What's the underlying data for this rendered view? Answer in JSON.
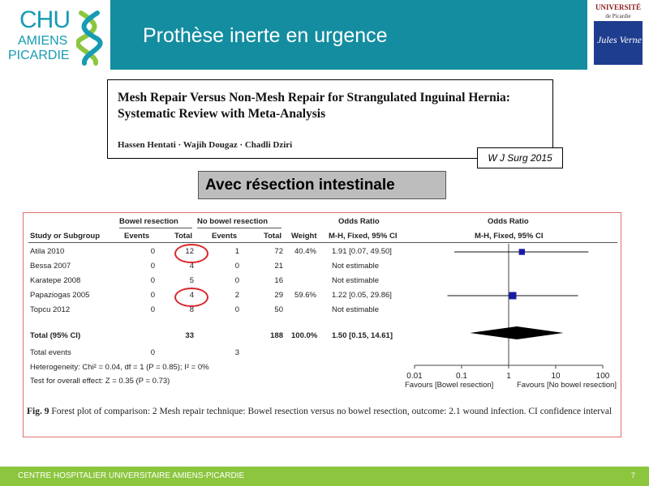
{
  "header": {
    "logo_left": {
      "line1": "CHU",
      "line2": "AMIENS",
      "line3": "PICARDIE"
    },
    "title": "Prothèse inerte en urgence",
    "logo_right": {
      "line1": "UNIVERSITÉ",
      "line2": "de Picardie",
      "signature": "Jules Verne"
    }
  },
  "paper": {
    "title": "Mesh Repair Versus Non-Mesh Repair for Strangulated Inguinal Hernia: Systematic Review with Meta-Analysis",
    "authors": "Hassen Hentati · Wajih Dougaz · Chadli Dziri",
    "journal": "W J Surg 2015"
  },
  "subtitle": "Avec résection intestinale",
  "forest": {
    "group1": "Bowel resection",
    "group2": "No bowel resection",
    "odds_ratio_header": "Odds Ratio",
    "plot_header": "Odds Ratio",
    "columns": {
      "study": "Study or Subgroup",
      "events1": "Events",
      "total1": "Total",
      "events2": "Events",
      "total2": "Total",
      "weight": "Weight",
      "method": "M-H, Fixed, 95% CI",
      "plot_method": "M-H, Fixed, 95% CI"
    },
    "rows": [
      {
        "study": "Atila 2010",
        "e1": "0",
        "t1": "12",
        "e2": "1",
        "t2": "72",
        "weight": "40.4%",
        "or": "1.91 [0.07, 49.50]"
      },
      {
        "study": "Bessa 2007",
        "e1": "0",
        "t1": "4",
        "e2": "0",
        "t2": "21",
        "weight": "",
        "or": "Not estimable"
      },
      {
        "study": "Karatepe 2008",
        "e1": "0",
        "t1": "5",
        "e2": "0",
        "t2": "16",
        "weight": "",
        "or": "Not estimable"
      },
      {
        "study": "Papaziogas 2005",
        "e1": "0",
        "t1": "4",
        "e2": "2",
        "t2": "29",
        "weight": "59.6%",
        "or": "1.22 [0.05, 29.86]"
      },
      {
        "study": "Topcu 2012",
        "e1": "0",
        "t1": "8",
        "e2": "0",
        "t2": "50",
        "weight": "",
        "or": "Not estimable"
      }
    ],
    "total": {
      "label": "Total (95% CI)",
      "t1": "33",
      "t2": "188",
      "weight": "100.0%",
      "or": "1.50 [0.15, 14.61]"
    },
    "total_events": {
      "label": "Total events",
      "e1": "0",
      "e2": "3"
    },
    "heterogeneity": "Heterogeneity: Chi² = 0.04, df = 1 (P = 0.85); I² = 0%",
    "overall_effect": "Test for overall effect: Z = 0.35 (P = 0.73)",
    "favours_left": "Favours [Bowel resection]",
    "favours_right": "Favours [No bowel resection]",
    "caption_label": "Fig. 9",
    "caption": "Forest plot of comparison: 2 Mesh repair technique: Bowel resection versus no bowel resection, outcome: 2.1 wound infection. CI confidence interval"
  },
  "chart_data": {
    "type": "scatter",
    "x_scale": "log",
    "xlim": [
      0.01,
      100
    ],
    "x_ticks": [
      "0.01",
      "0.1",
      "1",
      "10",
      "100"
    ],
    "studies": [
      {
        "name": "Atila 2010",
        "or": 1.91,
        "lower": 0.07,
        "upper": 49.5,
        "weight": 40.4
      },
      {
        "name": "Papaziogas 2005",
        "or": 1.22,
        "lower": 0.05,
        "upper": 29.86,
        "weight": 59.6
      }
    ],
    "pooled": {
      "or": 1.5,
      "lower": 0.15,
      "upper": 14.61
    },
    "highlight_color": "#d9262c",
    "marker_color": "#1a1aa6"
  },
  "footer": {
    "text": "CENTRE HOSPITALIER UNIVERSITAIRE AMIENS-PICARDIE",
    "page": "7"
  }
}
